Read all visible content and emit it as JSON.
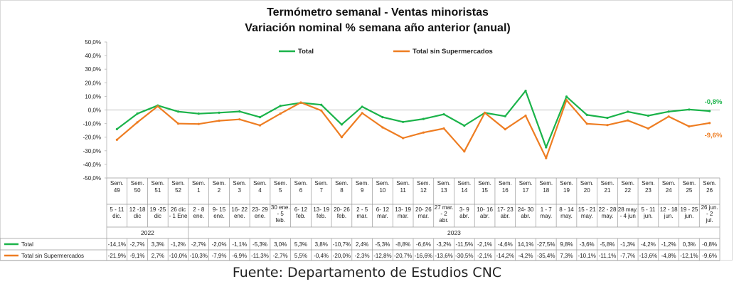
{
  "chart_data": {
    "type": "line",
    "title": "Termómetro semanal - Ventas minoristas",
    "subtitle": "Variación nominal % semana año anterior (anual)",
    "y_ticks": [
      "50,0%",
      "40,0%",
      "30,0%",
      "20,0%",
      "10,0%",
      "0,0%",
      "-10,0%",
      "-20,0%",
      "-30,0%",
      "-40,0%",
      "-50,0%"
    ],
    "ylim": [
      -50,
      50
    ],
    "grid": false,
    "legend_position": "top",
    "categories": [
      {
        "week": "Sem. 49",
        "dates": "5 - 11 dic."
      },
      {
        "week": "Sem. 50",
        "dates": "12 -18 dic"
      },
      {
        "week": "Sem. 51",
        "dates": "19 -25 dic"
      },
      {
        "week": "Sem. 52",
        "dates": "26 dic - 1 Ene"
      },
      {
        "week": "Sem. 1",
        "dates": "2 - 8 ene."
      },
      {
        "week": "Sem. 2",
        "dates": "9- 15 ene."
      },
      {
        "week": "Sem. 3",
        "dates": "16- 22 ene."
      },
      {
        "week": "Sem. 4",
        "dates": "23- 29 ene."
      },
      {
        "week": "Sem. 5",
        "dates": "30 ene. - 5 feb."
      },
      {
        "week": "Sem. 6",
        "dates": "6- 12 feb."
      },
      {
        "week": "Sem. 7",
        "dates": "13- 19 feb."
      },
      {
        "week": "Sem. 8",
        "dates": "20- 26 feb."
      },
      {
        "week": "Sem. 9",
        "dates": "2 - 5 mar."
      },
      {
        "week": "Sem. 10",
        "dates": "6- 12 mar."
      },
      {
        "week": "Sem. 11",
        "dates": "13- 19 mar."
      },
      {
        "week": "Sem. 12",
        "dates": "20- 26 mar."
      },
      {
        "week": "Sem. 13",
        "dates": "27 mar. - 2 abr."
      },
      {
        "week": "Sem. 14",
        "dates": "3- 9 abr."
      },
      {
        "week": "Sem. 15",
        "dates": "10- 16 abr."
      },
      {
        "week": "Sem. 16",
        "dates": "17- 23 abr."
      },
      {
        "week": "Sem. 17",
        "dates": "24- 30 abr."
      },
      {
        "week": "Sem. 18",
        "dates": "1 - 7 may."
      },
      {
        "week": "Sem. 19",
        "dates": "8 - 14 may."
      },
      {
        "week": "Sem. 20",
        "dates": "15 - 21 may."
      },
      {
        "week": "Sem. 21",
        "dates": "22 - 28 may."
      },
      {
        "week": "Sem. 22",
        "dates": "28 may. - 4 jun"
      },
      {
        "week": "Sem. 23",
        "dates": "5 - 11 jun."
      },
      {
        "week": "Sem. 24",
        "dates": "12 - 18 jun."
      },
      {
        "week": "Sem. 25",
        "dates": "19 - 25 jun."
      },
      {
        "week": "Sem. 26",
        "dates": "26 jun. - 2 jul."
      }
    ],
    "years": [
      {
        "label": "2022",
        "from": 0,
        "to": 3
      },
      {
        "label": "2023",
        "from": 4,
        "to": 29
      }
    ],
    "series": [
      {
        "name": "Total",
        "color": "#1bb34a",
        "values": [
          -14.1,
          -2.7,
          3.3,
          -1.2,
          -2.7,
          -2.0,
          -1.1,
          -5.3,
          3.0,
          5.3,
          3.8,
          -10.7,
          2.4,
          -5.3,
          -8.8,
          -6.6,
          -3.2,
          -11.5,
          -2.1,
          -4.6,
          14.1,
          -27.5,
          9.8,
          -3.6,
          -5.8,
          -1.3,
          -4.2,
          -1.2,
          0.3,
          -0.8
        ],
        "labels": [
          "-14,1%",
          "-2,7%",
          "3,3%",
          "-1,2%",
          "-2,7%",
          "-2,0%",
          "-1,1%",
          "-5,3%",
          "3,0%",
          "5,3%",
          "3,8%",
          "-10,7%",
          "2,4%",
          "-5,3%",
          "-8,8%",
          "-6,6%",
          "-3,2%",
          "-11,5%",
          "-2,1%",
          "-4,6%",
          "14,1%",
          "-27,5%",
          "9,8%",
          "-3,6%",
          "-5,8%",
          "-1,3%",
          "-4,2%",
          "-1,2%",
          "0,3%",
          "-0,8%"
        ],
        "end_label": "-0,8%"
      },
      {
        "name": "Total sin Supermercados",
        "color": "#ee7d22",
        "values": [
          -21.9,
          -9.1,
          2.7,
          -10.0,
          -10.3,
          -7.9,
          -6.9,
          -11.3,
          -2.7,
          5.5,
          -0.4,
          -20.0,
          -2.3,
          -12.8,
          -20.7,
          -16.6,
          -13.6,
          -30.5,
          -2.1,
          -14.2,
          -4.2,
          -35.4,
          7.3,
          -10.1,
          -11.1,
          -7.7,
          -13.6,
          -4.8,
          -12.1,
          -9.6
        ],
        "labels": [
          "-21,9%",
          "-9,1%",
          "2,7%",
          "-10,0%",
          "-10,3%",
          "-7,9%",
          "-6,9%",
          "-11,3%",
          "-2,7%",
          "5,5%",
          "-0,4%",
          "-20,0%",
          "-2,3%",
          "-12,8%",
          "-20,7%",
          "-16,6%",
          "-13,6%",
          "-30,5%",
          "-2,1%",
          "-14,2%",
          "-4,2%",
          "-35,4%",
          "7,3%",
          "-10,1%",
          "-11,1%",
          "-7,7%",
          "-13,6%",
          "-4,8%",
          "-12,1%",
          "-9,6%"
        ],
        "end_label": "-9,6%"
      }
    ]
  },
  "source": "Fuente: Departamento de Estudios CNC"
}
